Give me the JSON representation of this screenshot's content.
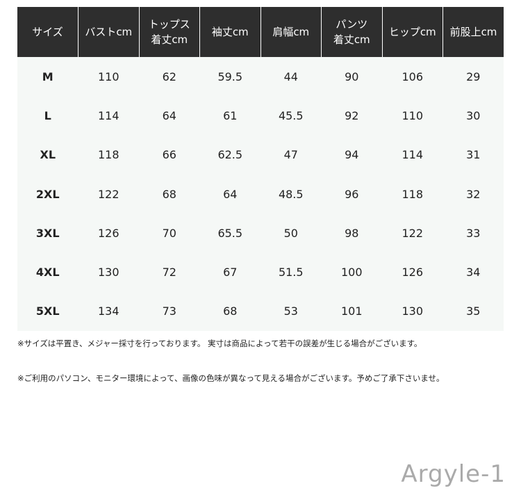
{
  "table": {
    "header": [
      [
        "サイズ"
      ],
      [
        "バストcm"
      ],
      [
        "トップス",
        "着丈cm"
      ],
      [
        "袖丈cm"
      ],
      [
        "肩幅cm"
      ],
      [
        "パンツ",
        "着丈cm"
      ],
      [
        "ヒップcm"
      ],
      [
        "前股上cm"
      ]
    ],
    "rows": [
      [
        "M",
        110,
        62,
        59.5,
        44,
        90,
        106,
        29
      ],
      [
        "L",
        114,
        64,
        61,
        45.5,
        92,
        110,
        30
      ],
      [
        "XL",
        118,
        66,
        62.5,
        47,
        94,
        114,
        31
      ],
      [
        "2XL",
        122,
        68,
        64,
        48.5,
        96,
        118,
        32
      ],
      [
        "3XL",
        126,
        70,
        65.5,
        50,
        98,
        122,
        33
      ],
      [
        "4XL",
        130,
        72,
        67,
        51.5,
        100,
        126,
        34
      ],
      [
        "5XL",
        134,
        73,
        68,
        53,
        101,
        130,
        35
      ]
    ]
  },
  "notes": [
    "※サイズは平置き、メジャー採寸を行っております。 実寸は商品によって若干の誤差が生じる場合がございます。",
    "※ご利用のパソコン、モニター環境によって、画像の色味が異なって見える場合がございます。予めご了承下さいませ。"
  ],
  "watermark": "Argyle-1"
}
